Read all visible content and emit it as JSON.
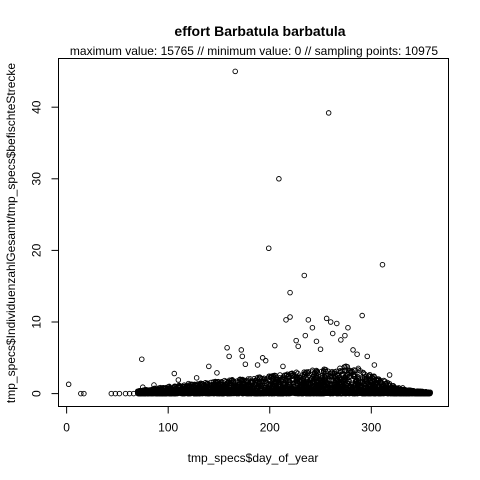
{
  "chart_data": {
    "type": "scatter",
    "title": "effort Barbatula barbatula",
    "subtitle": "maximum value: 15765  //  minimum value: 0  // sampling points: 10975",
    "xlabel": "tmp_specs$day_of_year",
    "ylabel": "tmp_specs$IndividuenzahlGesamt/tmp_specs$befischteStrecke",
    "xlim": [
      -8,
      376
    ],
    "ylim": [
      -1.8,
      46.8
    ],
    "xticks": [
      0,
      100,
      200,
      300
    ],
    "yticks": [
      0,
      10,
      20,
      30,
      40
    ],
    "xtick_labels": [
      "0",
      "100",
      "200",
      "300"
    ],
    "ytick_labels": [
      "0",
      "10",
      "20",
      "30",
      "40"
    ],
    "grid": false,
    "legend": "none",
    "points": [
      {
        "x": 2,
        "y": 1.3
      },
      {
        "x": 14,
        "y": 0
      },
      {
        "x": 17,
        "y": 0
      },
      {
        "x": 44,
        "y": 0
      },
      {
        "x": 48,
        "y": 0
      },
      {
        "x": 52,
        "y": 0
      },
      {
        "x": 58,
        "y": 0
      },
      {
        "x": 62,
        "y": 0
      },
      {
        "x": 66,
        "y": 0
      },
      {
        "x": 74,
        "y": 4.8
      },
      {
        "x": 75,
        "y": 0.9
      },
      {
        "x": 86,
        "y": 1.2
      },
      {
        "x": 88,
        "y": 0.5
      },
      {
        "x": 106,
        "y": 2.8
      },
      {
        "x": 110,
        "y": 1.9
      },
      {
        "x": 120,
        "y": 1.4
      },
      {
        "x": 128,
        "y": 2.2
      },
      {
        "x": 140,
        "y": 3.8
      },
      {
        "x": 148,
        "y": 2.9
      },
      {
        "x": 158,
        "y": 6.4
      },
      {
        "x": 160,
        "y": 5.2
      },
      {
        "x": 166,
        "y": 45.0
      },
      {
        "x": 172,
        "y": 6.1
      },
      {
        "x": 173,
        "y": 5.2
      },
      {
        "x": 176,
        "y": 4.1
      },
      {
        "x": 188,
        "y": 4.0
      },
      {
        "x": 193,
        "y": 5.0
      },
      {
        "x": 196,
        "y": 4.6
      },
      {
        "x": 199,
        "y": 20.3
      },
      {
        "x": 205,
        "y": 6.7
      },
      {
        "x": 209,
        "y": 30.0
      },
      {
        "x": 213,
        "y": 3.8
      },
      {
        "x": 216,
        "y": 10.3
      },
      {
        "x": 220,
        "y": 14.1
      },
      {
        "x": 220,
        "y": 10.7
      },
      {
        "x": 226,
        "y": 7.4
      },
      {
        "x": 228,
        "y": 6.6
      },
      {
        "x": 234,
        "y": 16.5
      },
      {
        "x": 235,
        "y": 8.1
      },
      {
        "x": 238,
        "y": 10.3
      },
      {
        "x": 242,
        "y": 9.2
      },
      {
        "x": 246,
        "y": 7.3
      },
      {
        "x": 250,
        "y": 6.2
      },
      {
        "x": 256,
        "y": 10.5
      },
      {
        "x": 258,
        "y": 39.2
      },
      {
        "x": 260,
        "y": 10.0
      },
      {
        "x": 262,
        "y": 8.4
      },
      {
        "x": 266,
        "y": 9.8
      },
      {
        "x": 270,
        "y": 7.5
      },
      {
        "x": 274,
        "y": 8.1
      },
      {
        "x": 277,
        "y": 9.2
      },
      {
        "x": 282,
        "y": 6.1
      },
      {
        "x": 286,
        "y": 5.5
      },
      {
        "x": 291,
        "y": 10.9
      },
      {
        "x": 296,
        "y": 5.2
      },
      {
        "x": 303,
        "y": 4.0
      },
      {
        "x": 311,
        "y": 18.0
      },
      {
        "x": 318,
        "y": 2.6
      },
      {
        "x": 331,
        "y": 0.8
      },
      {
        "x": 345,
        "y": 0.3
      },
      {
        "x": 352,
        "y": 0.2
      }
    ]
  }
}
